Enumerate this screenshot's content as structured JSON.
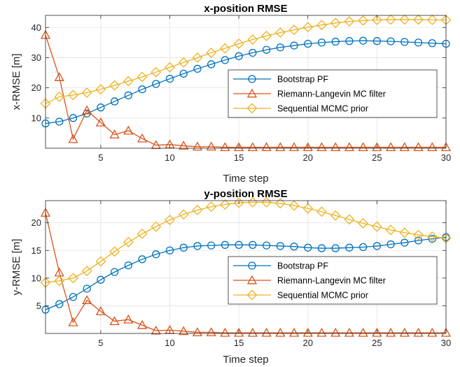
{
  "colors": {
    "bootstrap": "#0072BD",
    "riemann": "#D95319",
    "mcmc": "#EDB120"
  },
  "chart_data": [
    {
      "type": "line",
      "title": "x-position RMSE",
      "xlabel": "Time step",
      "ylabel": "x-RMSE [m]",
      "xlim": [
        1,
        30
      ],
      "ylim": [
        0,
        44
      ],
      "xticks": [
        5,
        10,
        15,
        20,
        25,
        30
      ],
      "yticks": [
        10,
        20,
        30,
        40
      ],
      "grid": true,
      "legend_position": "center-right",
      "x": [
        1,
        2,
        3,
        4,
        5,
        6,
        7,
        8,
        9,
        10,
        11,
        12,
        13,
        14,
        15,
        16,
        17,
        18,
        19,
        20,
        21,
        22,
        23,
        24,
        25,
        26,
        27,
        28,
        29,
        30
      ],
      "series": [
        {
          "name": "Bootstrap PF",
          "marker": "circle",
          "color_key": "bootstrap",
          "values": [
            8.2,
            8.8,
            10.0,
            11.5,
            13.5,
            15.5,
            17.5,
            19.5,
            21.3,
            23.0,
            24.7,
            26.3,
            27.8,
            29.2,
            30.5,
            31.6,
            32.6,
            33.4,
            34.0,
            34.6,
            35.0,
            35.3,
            35.5,
            35.6,
            35.5,
            35.4,
            35.2,
            35.0,
            34.8,
            34.6
          ]
        },
        {
          "name": "Riemann-Langevin MC filter",
          "marker": "triangle",
          "color_key": "riemann",
          "values": [
            37.5,
            23.5,
            3.0,
            12.5,
            8.5,
            4.5,
            5.8,
            3.2,
            1.0,
            1.2,
            0.8,
            0.5,
            0.5,
            0.3,
            0.3,
            0.3,
            0.3,
            0.3,
            0.3,
            0.3,
            0.3,
            0.3,
            0.3,
            0.3,
            0.3,
            0.3,
            0.3,
            0.3,
            0.3,
            0.3
          ]
        },
        {
          "name": "Sequential MCMC prior",
          "marker": "diamond",
          "color_key": "mcmc",
          "values": [
            14.8,
            17.0,
            17.6,
            18.4,
            19.5,
            20.8,
            22.2,
            23.6,
            25.2,
            26.8,
            28.4,
            30.0,
            31.6,
            33.1,
            34.6,
            36.0,
            37.2,
            38.3,
            39.2,
            40.1,
            40.8,
            41.5,
            42.0,
            42.3,
            42.5,
            42.6,
            42.6,
            42.6,
            42.5,
            42.5
          ]
        }
      ]
    },
    {
      "type": "line",
      "title": "y-position RMSE",
      "xlabel": "Time step",
      "ylabel": "y-RMSE [m]",
      "xlim": [
        1,
        30
      ],
      "ylim": [
        0,
        24
      ],
      "xticks": [
        5,
        10,
        15,
        20,
        25,
        30
      ],
      "yticks": [
        5,
        10,
        15,
        20
      ],
      "grid": true,
      "legend_position": "center-right",
      "x": [
        1,
        2,
        3,
        4,
        5,
        6,
        7,
        8,
        9,
        10,
        11,
        12,
        13,
        14,
        15,
        16,
        17,
        18,
        19,
        20,
        21,
        22,
        23,
        24,
        25,
        26,
        27,
        28,
        29,
        30
      ],
      "series": [
        {
          "name": "Bootstrap PF",
          "marker": "circle",
          "color_key": "bootstrap",
          "values": [
            4.3,
            5.3,
            6.6,
            8.1,
            9.7,
            11.1,
            12.3,
            13.4,
            14.3,
            15.0,
            15.5,
            15.8,
            15.9,
            16.0,
            16.0,
            16.0,
            15.9,
            15.8,
            15.7,
            15.5,
            15.4,
            15.4,
            15.5,
            15.6,
            15.8,
            16.1,
            16.4,
            16.8,
            17.1,
            17.4
          ]
        },
        {
          "name": "Riemann-Langevin MC filter",
          "marker": "triangle",
          "color_key": "riemann",
          "values": [
            21.8,
            11.0,
            2.0,
            6.0,
            4.0,
            2.2,
            2.5,
            1.5,
            0.5,
            0.6,
            0.4,
            0.2,
            0.2,
            0.1,
            0.1,
            0.1,
            0.1,
            0.1,
            0.1,
            0.1,
            0.1,
            0.1,
            0.1,
            0.1,
            0.1,
            0.1,
            0.1,
            0.1,
            0.1,
            0.1
          ]
        },
        {
          "name": "Sequential MCMC prior",
          "marker": "diamond",
          "color_key": "mcmc",
          "values": [
            9.2,
            9.5,
            10.0,
            11.3,
            13.0,
            14.8,
            16.5,
            18.0,
            19.3,
            20.5,
            21.5,
            22.3,
            22.9,
            23.3,
            23.6,
            23.7,
            23.7,
            23.5,
            23.1,
            22.6,
            22.0,
            21.3,
            20.6,
            19.9,
            19.3,
            18.7,
            18.2,
            17.8,
            17.5,
            17.2
          ]
        }
      ]
    }
  ]
}
